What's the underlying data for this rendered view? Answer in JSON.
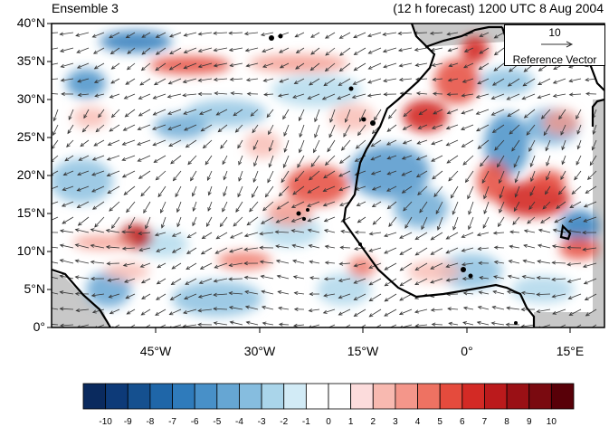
{
  "title_left": "Ensemble 3",
  "title_right": "(12 h forecast) 1200 UTC 8 Aug 2004",
  "lat_labels": [
    "40°N",
    "35°N",
    "30°N",
    "25°N",
    "20°N",
    "15°N",
    "10°N",
    "5°N",
    "0°"
  ],
  "lon_labels": [
    "45°W",
    "30°W",
    "15°W",
    "0°",
    "15°E"
  ],
  "reference_vector": {
    "magnitude": "10",
    "label": "Reference Vector"
  },
  "colorbar": {
    "labels": [
      "-10",
      "-9",
      "-8",
      "-7",
      "-6",
      "-5",
      "-4",
      "-3",
      "-2",
      "-1",
      "0",
      "1",
      "2",
      "3",
      "4",
      "5",
      "6",
      "7",
      "8",
      "9",
      "10"
    ],
    "colors": [
      "#0a2a5e",
      "#0d3a78",
      "#15508f",
      "#1f66a8",
      "#2f7bbb",
      "#4890c8",
      "#66a6d3",
      "#86bddf",
      "#aad5ea",
      "#d2ebf6",
      "#ffffff",
      "#ffffff",
      "#fcdcdc",
      "#f8b9b0",
      "#f4968a",
      "#ee7262",
      "#e54b3d",
      "#d32a25",
      "#bb1a1c",
      "#9a1015",
      "#7a0a10",
      "#580008"
    ]
  },
  "map_extent": {
    "lon_min": -60,
    "lon_max": 20,
    "lat_min": 0,
    "lat_max": 40
  },
  "map_colors": {
    "land_mask": "#c8c8c8",
    "coastline": "#000000",
    "vector": "#333333"
  }
}
